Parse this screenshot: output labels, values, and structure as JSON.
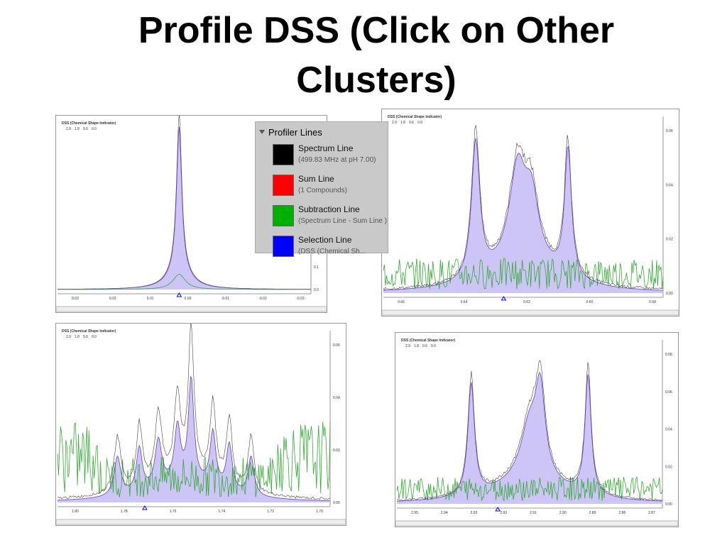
{
  "title": "Profile DSS (Click on Other Clusters)",
  "legend": {
    "heading": "Profiler Lines",
    "items": [
      {
        "name": "Spectrum Line",
        "detail": "(499.83 MHz at pH 7.00)",
        "color": "#000000"
      },
      {
        "name": "Sum Line",
        "detail": "(1 Compounds)",
        "color": "#ff0000"
      },
      {
        "name": "Subtraction Line",
        "detail": "(Spectrum Line - Sum Line )",
        "color": "#00b000"
      },
      {
        "name": "Selection Line",
        "detail": "(DSS (Chemical Sh...",
        "color": "#0000ff"
      }
    ]
  },
  "panels": [
    {
      "header": "DSS (Chemical Shape Indicator)",
      "controls": [
        "2.9",
        "1.8",
        "9.6",
        "0.0"
      ],
      "xticks": [
        "0.03",
        "0.02",
        "0.01",
        "0.00",
        "-0.01",
        "-0.02",
        "-0.03"
      ],
      "yticks": [
        "0.1",
        "0.0"
      ]
    },
    {
      "header": "DSS (Chemical Shape Indicator)",
      "controls": [
        "2.9",
        "1.8",
        "0.6",
        "0.0"
      ],
      "xticks": [
        "0.66",
        "0.64",
        "0.62",
        "0.60",
        "0.58"
      ],
      "yticks": [
        "0.06",
        "0.04",
        "0.02",
        "0.00"
      ]
    },
    {
      "header": "DSS (Chemical Shape Indicator)",
      "controls": [
        "2.9",
        "1.8",
        "9.6",
        "0.0"
      ],
      "xticks": [
        "1.80",
        "1.78",
        "1.76",
        "1.74",
        "1.72",
        "1.70"
      ],
      "yticks": [
        "0.06",
        "0.04",
        "0.02",
        "0.00"
      ]
    },
    {
      "header": "DSS (Chemical Shape Indicator)",
      "controls": [
        "2.9",
        "1.8",
        "0.6",
        "0.0"
      ],
      "xticks": [
        "2.95",
        "2.94",
        "2.93",
        "2.92",
        "2.91",
        "2.90",
        "2.89",
        "2.88",
        "2.87"
      ],
      "yticks": [
        "0.08",
        "0.06",
        "0.04",
        "0.02",
        "0.00"
      ]
    }
  ]
}
